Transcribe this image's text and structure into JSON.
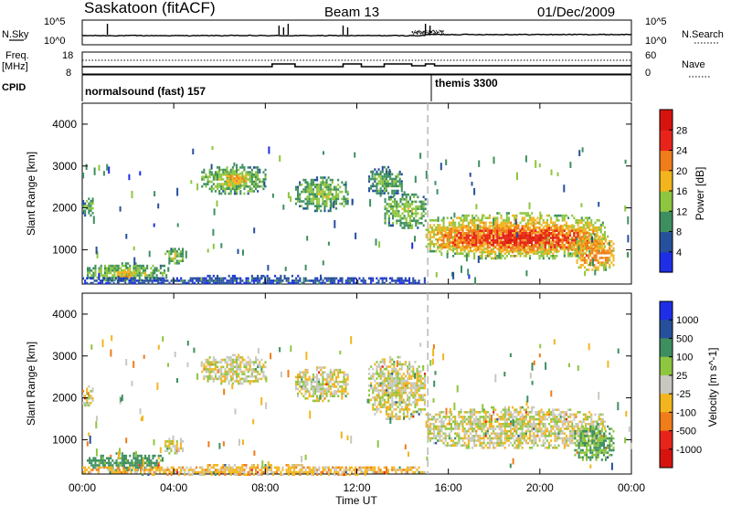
{
  "header": {
    "station": "Saskatoon (fitACF)",
    "beam": "Beam 13",
    "date": "01/Dec/2009"
  },
  "strips": {
    "nsky": {
      "left_label": "N.Sky",
      "left_ticks": [
        "10^5",
        "10^0"
      ],
      "right_ticks": [
        "10^5",
        "10^0"
      ],
      "right_label": "N.Search"
    },
    "freq": {
      "left_label_line1": "Freq.",
      "left_label_line2": "[MHz]",
      "left_ticks": [
        "18",
        "8"
      ],
      "right_ticks": [
        "60",
        "0"
      ],
      "right_label": "Nave",
      "freq_mhz": 11.5
    },
    "cpid": {
      "label": "CPID",
      "programs": [
        {
          "name": "normalsound (fast) 157",
          "start_hour": 0
        },
        {
          "name": "themis 3300",
          "start_hour": 15.1
        }
      ]
    }
  },
  "x_axis": {
    "label": "Time UT",
    "ticks": [
      "00:00",
      "04:00",
      "08:00",
      "12:00",
      "16:00",
      "20:00",
      "00:00"
    ],
    "range_hours": [
      0,
      24
    ]
  },
  "chart_data": [
    {
      "type": "heatmap",
      "title": "Power",
      "ylabel": "Slant Range [km]",
      "xlabel": "Time UT",
      "x_range_hours": [
        0,
        24
      ],
      "ylim": [
        180,
        4500
      ],
      "yticks": [
        1000,
        2000,
        3000,
        4000
      ],
      "colorbar": {
        "label": "Power [dB]",
        "ticks": [
          "4",
          "8",
          "12",
          "16",
          "20",
          "24",
          "28"
        ],
        "range": [
          0,
          32
        ],
        "colors": [
          "#1e2ee6",
          "#27509c",
          "#3d8f5f",
          "#8ec63f",
          "#f2b51e",
          "#f07c1a",
          "#e8241a",
          "#d7130f"
        ]
      },
      "echo_regions": [
        {
          "t0": 0.0,
          "t1": 0.5,
          "r0": 1800,
          "r1": 2300,
          "level": 12
        },
        {
          "t0": 0.2,
          "t1": 3.8,
          "r0": 250,
          "r1": 700,
          "level": 14
        },
        {
          "t0": 1.5,
          "t1": 2.3,
          "r0": 300,
          "r1": 600,
          "level": 20
        },
        {
          "t0": 3.6,
          "t1": 4.4,
          "r0": 650,
          "r1": 1100,
          "level": 14
        },
        {
          "t0": 5.2,
          "t1": 8.0,
          "r0": 2350,
          "r1": 3050,
          "level": 14
        },
        {
          "t0": 6.2,
          "t1": 7.2,
          "r0": 2500,
          "r1": 2900,
          "level": 20
        },
        {
          "t0": 9.3,
          "t1": 11.6,
          "r0": 1950,
          "r1": 2750,
          "level": 14
        },
        {
          "t0": 12.5,
          "t1": 14.0,
          "r0": 2300,
          "r1": 3000,
          "level": 12
        },
        {
          "t0": 13.2,
          "t1": 15.0,
          "r0": 1500,
          "r1": 2400,
          "level": 14
        },
        {
          "t0": 15.0,
          "t1": 22.8,
          "r0": 800,
          "r1": 1900,
          "level": 20
        },
        {
          "t0": 15.5,
          "t1": 22.5,
          "r0": 950,
          "r1": 1650,
          "level": 27
        },
        {
          "t0": 21.5,
          "t1": 23.2,
          "r0": 500,
          "r1": 1400,
          "level": 22
        },
        {
          "t0": 0.0,
          "t1": 15.0,
          "r0": 180,
          "r1": 400,
          "level": 6
        }
      ]
    },
    {
      "type": "heatmap",
      "title": "Velocity",
      "ylabel": "Slant Range [km]",
      "xlabel": "Time UT",
      "x_range_hours": [
        0,
        24
      ],
      "ylim": [
        180,
        4500
      ],
      "yticks": [
        1000,
        2000,
        3000,
        4000
      ],
      "colorbar": {
        "label": "Velocity [m s^-1]",
        "ticks": [
          "1000",
          "500",
          "100",
          "25",
          "-25",
          "-100",
          "-500",
          "-1000"
        ],
        "colors": [
          "#1e2ee6",
          "#27509c",
          "#3d8f5f",
          "#8ec63f",
          "#c8c8c0",
          "#f2b51e",
          "#f07c1a",
          "#e8241a",
          "#d7130f"
        ]
      },
      "echo_regions": [
        {
          "t0": 0.0,
          "t1": 0.5,
          "r0": 1800,
          "r1": 2300,
          "value": 0
        },
        {
          "t0": 0.2,
          "t1": 3.5,
          "r0": 300,
          "r1": 700,
          "value": 150
        },
        {
          "t0": 3.6,
          "t1": 4.4,
          "r0": 650,
          "r1": 1100,
          "value": 0
        },
        {
          "t0": 5.2,
          "t1": 8.0,
          "r0": 2350,
          "r1": 3050,
          "value": 0
        },
        {
          "t0": 9.3,
          "t1": 11.6,
          "r0": 1950,
          "r1": 2750,
          "value": 0
        },
        {
          "t0": 12.5,
          "t1": 15.0,
          "r0": 1500,
          "r1": 3000,
          "value": 0
        },
        {
          "t0": 15.0,
          "t1": 22.8,
          "r0": 800,
          "r1": 1800,
          "value": 0
        },
        {
          "t0": 21.5,
          "t1": 23.2,
          "r0": 500,
          "r1": 1400,
          "value": 100
        },
        {
          "t0": 0.0,
          "t1": 15.0,
          "r0": 180,
          "r1": 420,
          "value": -60
        }
      ]
    }
  ]
}
